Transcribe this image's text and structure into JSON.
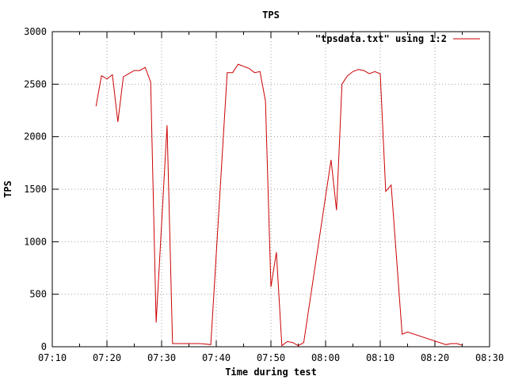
{
  "chart_data": {
    "type": "line",
    "title": "TPS",
    "xlabel": "Time during test",
    "ylabel": "TPS",
    "xlim": [
      "07:10",
      "08:30"
    ],
    "ylim": [
      0,
      3000
    ],
    "grid": true,
    "legend_placement": "top-right",
    "x_ticks": [
      "07:10",
      "07:20",
      "07:30",
      "07:40",
      "07:50",
      "08:00",
      "08:10",
      "08:20",
      "08:30"
    ],
    "y_ticks": [
      0,
      500,
      1000,
      1500,
      2000,
      2500,
      3000
    ],
    "series": [
      {
        "name": "\"tpsdata.txt\" using 1:2",
        "color": "#cc0000",
        "x": [
          "07:18",
          "07:19",
          "07:20",
          "07:21",
          "07:22",
          "07:23",
          "07:24",
          "07:25",
          "07:26",
          "07:27",
          "07:28",
          "07:29",
          "07:31",
          "07:32",
          "07:33",
          "07:35",
          "07:37",
          "07:39",
          "07:42",
          "07:43",
          "07:44",
          "07:46",
          "07:47",
          "07:48",
          "07:49",
          "07:50",
          "07:51",
          "07:52",
          "07:53",
          "07:54",
          "07:55",
          "07:56",
          "08:01",
          "08:02",
          "08:03",
          "08:04",
          "08:05",
          "08:06",
          "08:07",
          "08:08",
          "08:09",
          "08:10",
          "08:11",
          "08:12",
          "08:14",
          "08:15",
          "08:22",
          "08:23",
          "08:24",
          "08:25"
        ],
        "y": [
          2290,
          2580,
          2550,
          2590,
          2140,
          2570,
          2600,
          2630,
          2630,
          2660,
          2520,
          230,
          2110,
          30,
          30,
          30,
          30,
          20,
          2610,
          2610,
          2690,
          2650,
          2610,
          2620,
          2340,
          570,
          900,
          10,
          50,
          40,
          10,
          40,
          1780,
          1300,
          2500,
          2580,
          2620,
          2640,
          2630,
          2600,
          2620,
          2600,
          1480,
          1540,
          120,
          140,
          20,
          30,
          30,
          15
        ]
      }
    ]
  }
}
